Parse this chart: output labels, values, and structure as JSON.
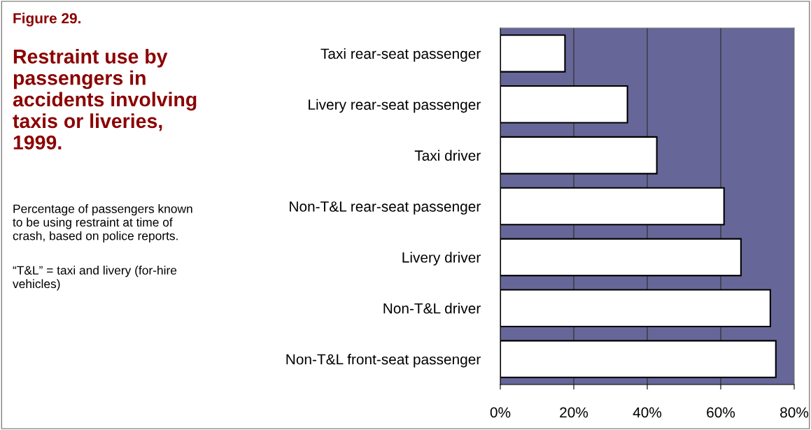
{
  "chart_data": {
    "type": "bar",
    "orientation": "horizontal",
    "title": "Figure 29.",
    "subtitle": "Restraint use by passengers in accidents involving taxis or liveries, 1999.",
    "annotations": [
      "Percentage of passengers known to be using restraint at time of crash, based on police reports.",
      "“T&L” = taxi and livery (for-hire vehicles)"
    ],
    "categories": [
      "Taxi rear-seat passenger",
      "Livery rear-seat passenger",
      "Taxi driver",
      "Non-T&L rear-seat passenger",
      "Livery driver",
      "Non-T&L driver",
      "Non-T&L front-seat passenger"
    ],
    "values": [
      17.6,
      34.6,
      42.6,
      60.9,
      65.5,
      73.5,
      75.0
    ],
    "color": "#ffffff",
    "xlim": [
      0,
      80
    ],
    "xticks": [
      {
        "value": 0,
        "label": "0%"
      },
      {
        "value": 20,
        "label": "20%"
      },
      {
        "value": 40,
        "label": "40%"
      },
      {
        "value": 60,
        "label": "60%"
      },
      {
        "value": 80,
        "label": "80%"
      }
    ],
    "grid": "x",
    "legend": false
  }
}
